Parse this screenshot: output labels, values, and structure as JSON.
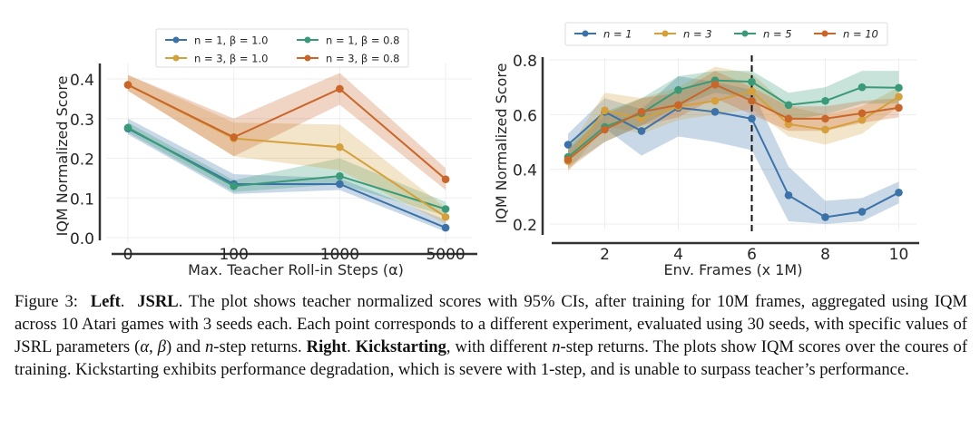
{
  "figure": {
    "caption": {
      "prefix": "Figure 3:",
      "left_label": "Left",
      "left_name": "JSRL",
      "text1": ". The plot shows teacher normalized scores with 95% CIs, after training for 10M frames, aggregated using IQM across 10 Atari games with 3 seeds each. Each point corresponds to a different experiment, evaluated using 30 seeds, with specific values of JSRL parameters (",
      "alpha": "α",
      "comma": ", ",
      "beta": "β",
      "text2": ") and ",
      "n": "n",
      "text3": "-step returns. ",
      "right_label": "Right",
      "right_name": "Kickstarting",
      "text4": ", with different ",
      "text5": "-step returns. The plots show IQM scores over the coures of training. Kickstarting exhibits performance degradation, which is severe with 1-step, and is unable to surpass teacher’s performance."
    }
  },
  "chart_data": [
    {
      "type": "line",
      "title": "",
      "xlabel": "Max. Teacher Roll-in Steps (α)",
      "ylabel": "IQM Normalized Score",
      "categories": [
        "0",
        "100",
        "1000",
        "5000"
      ],
      "ylim": [
        0.0,
        0.43
      ],
      "yticks": [
        0.0,
        0.1,
        0.2,
        0.3,
        0.4
      ],
      "ytick_labels": [
        "0.0",
        "0.1",
        "0.2",
        "0.3",
        "0.4"
      ],
      "grid": true,
      "legend": "top-center",
      "legend_columns": 2,
      "series": [
        {
          "name": "n = 1, β = 1.0",
          "color": "#3b72a8",
          "values": [
            0.275,
            0.135,
            0.135,
            0.025
          ],
          "ci_low": [
            0.26,
            0.11,
            0.12,
            0.015
          ],
          "ci_high": [
            0.3,
            0.16,
            0.15,
            0.045
          ]
        },
        {
          "name": "n = 1, β = 0.8",
          "color": "#3a9a78",
          "values": [
            0.277,
            0.13,
            0.155,
            0.072
          ],
          "ci_low": [
            0.265,
            0.115,
            0.135,
            0.055
          ],
          "ci_high": [
            0.29,
            0.145,
            0.2,
            0.09
          ]
        },
        {
          "name": "n = 3, β = 1.0",
          "color": "#d5a03c",
          "values": [
            0.385,
            0.25,
            0.228,
            0.052
          ],
          "ci_low": [
            0.37,
            0.205,
            0.17,
            0.035
          ],
          "ci_high": [
            0.41,
            0.29,
            0.285,
            0.075
          ]
        },
        {
          "name": "n = 3, β = 0.8",
          "color": "#c9662a",
          "values": [
            0.385,
            0.253,
            0.375,
            0.147
          ],
          "ci_low": [
            0.37,
            0.205,
            0.335,
            0.12
          ],
          "ci_high": [
            0.41,
            0.3,
            0.415,
            0.175
          ]
        }
      ],
      "axis_kind": "categorical"
    },
    {
      "type": "line",
      "title": "",
      "xlabel": "Env. Frames (x 1M)",
      "ylabel": "IQM Normalized Score",
      "x": [
        1,
        2,
        3,
        4,
        5,
        6,
        7,
        8,
        9,
        10
      ],
      "xlim": [
        0.5,
        10.5
      ],
      "xticks": [
        2,
        4,
        6,
        8,
        10
      ],
      "xtick_labels": [
        "2",
        "4",
        "6",
        "8",
        "10"
      ],
      "ylim": [
        0.18,
        0.8
      ],
      "yticks": [
        0.2,
        0.4,
        0.6,
        0.8
      ],
      "ytick_labels": [
        "0.2",
        "0.4",
        "0.6",
        "0.8"
      ],
      "grid": true,
      "legend": "top-center",
      "legend_columns": 4,
      "vline": {
        "x": 6,
        "style": "dashed",
        "color": "#111111"
      },
      "series": [
        {
          "name": "n = 1",
          "color": "#3b72a8",
          "values": [
            0.49,
            0.61,
            0.54,
            0.625,
            0.61,
            0.585,
            0.305,
            0.225,
            0.245,
            0.315
          ],
          "ci_low": [
            0.44,
            0.55,
            0.45,
            0.52,
            0.5,
            0.47,
            0.21,
            0.2,
            0.21,
            0.275
          ],
          "ci_high": [
            0.53,
            0.66,
            0.62,
            0.74,
            0.72,
            0.69,
            0.41,
            0.285,
            0.295,
            0.355
          ]
        },
        {
          "name": "n = 3",
          "color": "#d5a03c",
          "values": [
            0.43,
            0.615,
            0.585,
            0.63,
            0.65,
            0.685,
            0.565,
            0.545,
            0.58,
            0.665
          ],
          "ci_low": [
            0.39,
            0.56,
            0.53,
            0.58,
            0.6,
            0.62,
            0.52,
            0.49,
            0.53,
            0.63
          ],
          "ci_high": [
            0.47,
            0.68,
            0.66,
            0.7,
            0.775,
            0.75,
            0.63,
            0.6,
            0.63,
            0.7
          ]
        },
        {
          "name": "n = 5",
          "color": "#3a9a78",
          "values": [
            0.445,
            0.555,
            0.605,
            0.69,
            0.725,
            0.72,
            0.635,
            0.65,
            0.7,
            0.698
          ],
          "ci_low": [
            0.41,
            0.5,
            0.56,
            0.63,
            0.68,
            0.66,
            0.58,
            0.6,
            0.64,
            0.64
          ],
          "ci_high": [
            0.48,
            0.61,
            0.66,
            0.74,
            0.76,
            0.76,
            0.68,
            0.7,
            0.76,
            0.76
          ]
        },
        {
          "name": "n = 10",
          "color": "#c9662a",
          "values": [
            0.435,
            0.545,
            0.61,
            0.635,
            0.71,
            0.65,
            0.585,
            0.585,
            0.605,
            0.625
          ],
          "ci_low": [
            0.4,
            0.5,
            0.56,
            0.59,
            0.66,
            0.6,
            0.54,
            0.54,
            0.57,
            0.59
          ],
          "ci_high": [
            0.47,
            0.6,
            0.66,
            0.68,
            0.76,
            0.7,
            0.63,
            0.63,
            0.65,
            0.66
          ]
        }
      ],
      "axis_kind": "linear"
    }
  ]
}
